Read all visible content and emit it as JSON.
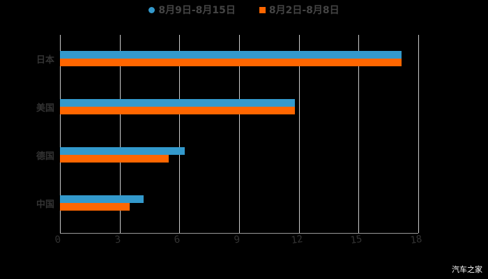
{
  "chart_data": {
    "type": "bar",
    "orientation": "horizontal",
    "title": "",
    "categories": [
      "日本",
      "美国",
      "德国",
      "中国"
    ],
    "series": [
      {
        "name": "8月9日-8月15日",
        "color": "#3399cc",
        "values": [
          17.15,
          11.8,
          6.27,
          4.2
        ]
      },
      {
        "name": "8月2日-8月8日",
        "color": "#ff6600",
        "values": [
          17.15,
          11.8,
          5.46,
          3.5
        ]
      }
    ],
    "xlabel": "",
    "ylabel": "",
    "xlim": [
      0,
      18
    ],
    "xticks": [
      "0",
      "3",
      "6",
      "9",
      "12",
      "15",
      "18"
    ],
    "grid": true,
    "legend_position": "top"
  },
  "legend": [
    {
      "label": "8月9日-8月15日",
      "color": "#3399cc",
      "shape": "circle"
    },
    {
      "label": "8月2日-8月8日",
      "color": "#ff6600",
      "shape": "square"
    }
  ],
  "watermark": "汽车之家"
}
